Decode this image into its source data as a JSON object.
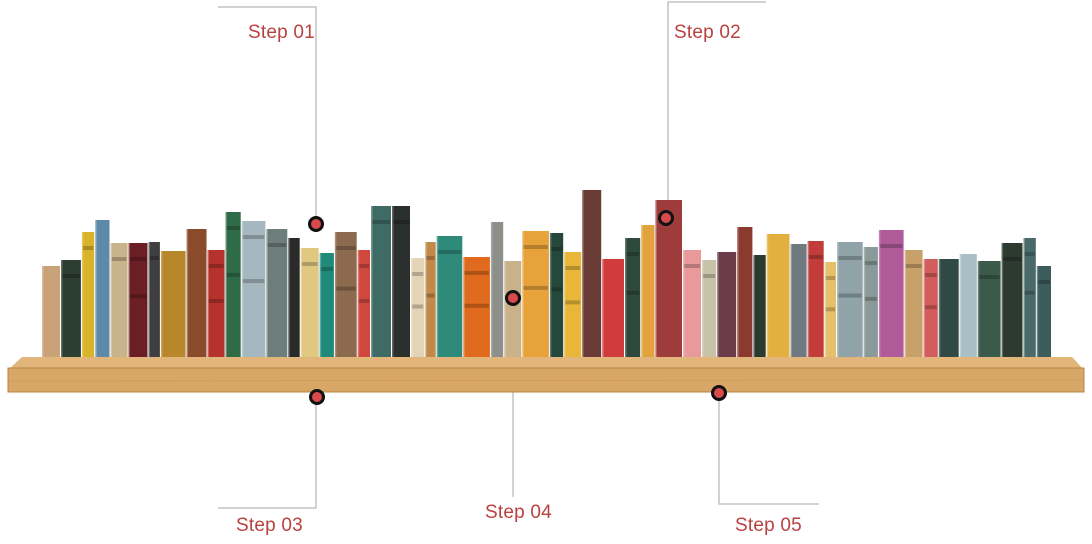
{
  "steps": [
    {
      "label": "Step 01"
    },
    {
      "label": "Step 02"
    },
    {
      "label": "Step 03"
    },
    {
      "label": "Step 04"
    },
    {
      "label": "Step 05"
    }
  ],
  "colors": {
    "label": "#b9413f",
    "connector": "#c4c4c4",
    "marker_fill": "#d94a4a",
    "marker_ring": "#111111",
    "shelf": "#d8a767",
    "shelf_edge": "#b8843f"
  },
  "books": [
    "#c9a27a",
    "#2c3e2f",
    "#d9b32a",
    "#5d8aa8",
    "#c8b38a",
    "#6b1f24",
    "#3f3f3f",
    "#b8862b",
    "#8a4b2a",
    "#b5332c",
    "#2f6b47",
    "#a6b8bf",
    "#6c7d7a",
    "#2a2a2a",
    "#e0c880",
    "#1f8a7a",
    "#8b6a4e",
    "#d0483d",
    "#3f6b66",
    "#2b2f2e",
    "#e4d4b6",
    "#c28a4a",
    "#2e8b7a",
    "#e06a1d",
    "#8d8f8a",
    "#c9b28a",
    "#e8a23a",
    "#26483a",
    "#e8b73a",
    "#6a3a34",
    "#d23b3b",
    "#2e4a3e",
    "#e2a33c",
    "#9e3b3b",
    "#e89a9a",
    "#c8c2a8",
    "#6b3c4a",
    "#8a3a2e",
    "#2a3a30",
    "#e3b040",
    "#6e7a80",
    "#c23c3c",
    "#e4c06a",
    "#8fa3a8",
    "#8a9a98",
    "#b05a9a",
    "#c8a06a",
    "#d35c5c",
    "#2f4a44",
    "#a8c0c4",
    "#3a5a4a",
    "#2c3a30",
    "#4a6a6a",
    "#3a5c5a"
  ]
}
